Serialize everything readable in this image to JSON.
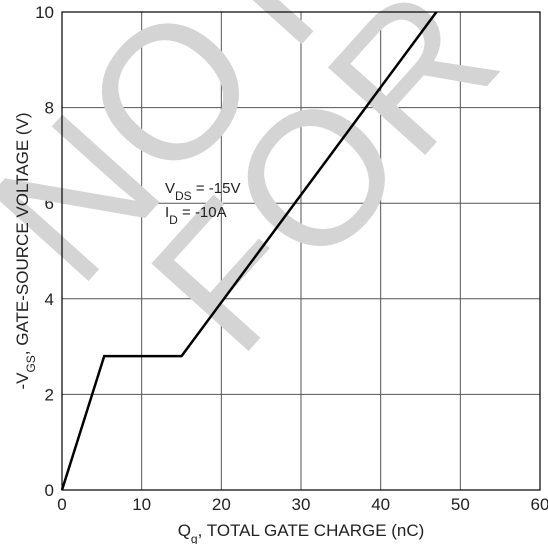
{
  "chart_data": {
    "type": "line",
    "xlabel": [
      "Q",
      "g",
      ", TOTAL GATE CHARGE (nC)"
    ],
    "ylabel": [
      "-V",
      "GS",
      ", GATE-SOURCE VOLTAGE (V)"
    ],
    "annotations": [
      [
        "V",
        "DS",
        " = -15V"
      ],
      [
        "I",
        "D",
        " = -10A"
      ]
    ],
    "watermark": [
      "NOT",
      "FOR"
    ],
    "x": [
      0,
      5.3,
      15,
      47
    ],
    "series": [
      {
        "color": "#000000",
        "values": [
          0,
          2.8,
          2.8,
          10
        ]
      }
    ],
    "xlim": [
      0,
      60
    ],
    "xticks": [
      0,
      10,
      20,
      30,
      40,
      50,
      60
    ],
    "ylim": [
      0,
      10
    ],
    "yticks": [
      0,
      2,
      4,
      6,
      8,
      10
    ],
    "grid": true
  }
}
